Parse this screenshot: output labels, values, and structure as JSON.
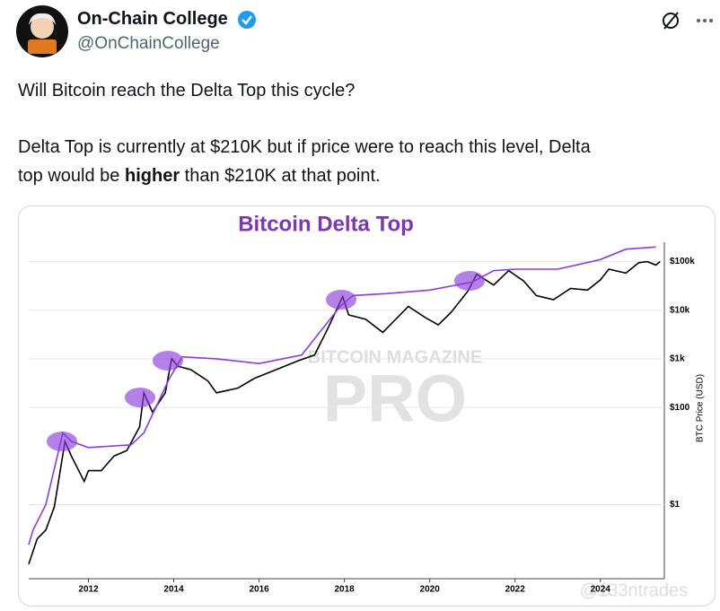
{
  "tweet": {
    "name": "On-Chain College",
    "handle": "@OnChainCollege",
    "line1": "Will Bitcoin reach the Delta Top this cycle?",
    "line2": "Delta Top is currently at $210K but if price were to reach this level, Delta",
    "line3a": "top would be ",
    "line3b": "higher",
    "line3c": " than $210K at that point."
  },
  "chart_data": {
    "type": "line",
    "title": "Bitcoin Delta Top",
    "ylabel": "BTC Price (USD)",
    "watermark_top": "BITCOIN MAGAZINE",
    "watermark_bottom": "PRO",
    "credit": "@133ntrades",
    "log_y": true,
    "grid": true,
    "xlim": [
      2010.6,
      2025.5
    ],
    "xticks": [
      2012,
      2014,
      2016,
      2018,
      2020,
      2022,
      2024
    ],
    "ylim": [
      0.03,
      250000
    ],
    "yticks": [
      {
        "value": 1,
        "label": "$1"
      },
      {
        "value": 100,
        "label": "$100"
      },
      {
        "value": 1000,
        "label": "$1k"
      },
      {
        "value": 10000,
        "label": "$10k"
      },
      {
        "value": 100000,
        "label": "$100k"
      }
    ],
    "series": [
      {
        "color": "#000000",
        "x": [
          2010.6,
          2010.8,
          2011.0,
          2011.2,
          2011.45,
          2011.6,
          2011.9,
          2012.0,
          2012.3,
          2012.6,
          2012.9,
          2013.2,
          2013.3,
          2013.5,
          2013.8,
          2013.95,
          2014.1,
          2014.4,
          2014.8,
          2015.0,
          2015.5,
          2015.9,
          2016.5,
          2016.9,
          2017.3,
          2017.6,
          2017.96,
          2018.1,
          2018.5,
          2018.9,
          2019.5,
          2019.9,
          2020.2,
          2020.5,
          2020.9,
          2021.1,
          2021.5,
          2021.85,
          2022.2,
          2022.5,
          2022.9,
          2023.3,
          2023.7,
          2024.0,
          2024.2,
          2024.6,
          2024.9,
          2025.1,
          2025.3,
          2025.4
        ],
        "values": [
          0.06,
          0.2,
          0.3,
          0.9,
          20,
          10,
          3,
          5,
          5,
          10,
          13,
          40,
          200,
          80,
          200,
          1000,
          700,
          600,
          350,
          200,
          250,
          400,
          650,
          900,
          1200,
          4000,
          19000,
          8000,
          6500,
          3500,
          12000,
          7000,
          5000,
          9000,
          25000,
          55000,
          33000,
          65000,
          40000,
          20000,
          16500,
          28000,
          26000,
          42000,
          70000,
          58000,
          95000,
          100000,
          85000,
          100000
        ]
      },
      {
        "color": "#8a3ddc",
        "x": [
          2010.6,
          2010.7,
          2011.0,
          2011.4,
          2011.6,
          2012.0,
          2013.0,
          2013.3,
          2013.9,
          2014.2,
          2015.0,
          2016.0,
          2017.0,
          2017.9,
          2018.2,
          2019.0,
          2020.0,
          2021.0,
          2021.5,
          2022.0,
          2023.0,
          2024.0,
          2024.6,
          2025.3
        ],
        "values": [
          0.15,
          0.3,
          1,
          30,
          20,
          15,
          17,
          30,
          400,
          1100,
          1000,
          800,
          1200,
          12000,
          20000,
          22000,
          26000,
          38000,
          65000,
          70000,
          70000,
          110000,
          180000,
          200000
        ]
      }
    ]
  }
}
